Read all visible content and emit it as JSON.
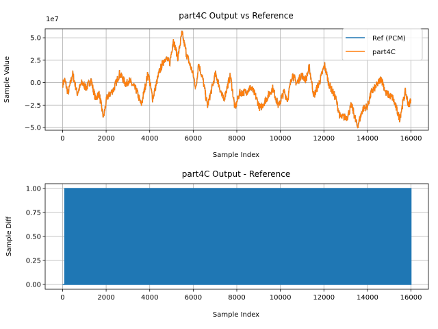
{
  "chart_data": [
    {
      "type": "line",
      "title": "part4C Output vs Reference",
      "xlabel": "Sample Index",
      "ylabel": "Sample Value",
      "y_offset_label": "1e7",
      "xlim": [
        -800,
        16800
      ],
      "ylim": [
        -5.3,
        6.0
      ],
      "xticks": [
        0,
        2000,
        4000,
        6000,
        8000,
        10000,
        12000,
        14000,
        16000
      ],
      "yticks": [
        -5.0,
        -2.5,
        0.0,
        2.5,
        5.0
      ],
      "ytick_labels": [
        "−5.0",
        "−2.5",
        "0.0",
        "2.5",
        "5.0"
      ],
      "grid": true,
      "legend_placement": "top-right",
      "series": [
        {
          "name": "Ref (PCM)",
          "color": "#1f77b4"
        },
        {
          "name": "part4C",
          "color": "#ff7f0e"
        }
      ],
      "y_units": "1e7",
      "approx_envelope": {
        "x": [
          10,
          94,
          252,
          462,
          672,
          882,
          1092,
          1302,
          1512,
          1669,
          1879,
          2037,
          2352,
          2614,
          2929,
          3034,
          3402,
          3612,
          3927,
          4137,
          4452,
          4715,
          4925,
          5082,
          5292,
          5481,
          5712,
          5975,
          6132,
          6237,
          6447,
          6657,
          7024,
          7392,
          7707,
          7917,
          8127,
          8442,
          8653,
          8863,
          9072,
          9387,
          9650,
          9913,
          10175,
          10332,
          10543,
          10753,
          10962,
          11172,
          11330,
          11540,
          11802,
          12033,
          12222,
          12537,
          12748,
          13063,
          13273,
          13536,
          13797,
          14008,
          14166,
          14427,
          14638,
          14848,
          15163,
          15478,
          15741,
          15898,
          16000
        ],
        "y": [
          -0.1,
          0.3,
          -1.2,
          1.0,
          -1.2,
          0.0,
          -0.6,
          0.3,
          -1.8,
          -1.2,
          -3.85,
          -1.7,
          -0.7,
          1.0,
          -0.2,
          0.3,
          -0.9,
          -2.5,
          1.1,
          -1.8,
          1.3,
          2.8,
          2.2,
          4.75,
          2.8,
          5.5,
          3.0,
          1.1,
          -0.7,
          2.2,
          0.3,
          -2.6,
          1.0,
          -2.0,
          0.8,
          -2.9,
          -1.16,
          -1.0,
          -0.5,
          -1.5,
          -2.9,
          -1.7,
          -0.6,
          -2.6,
          -1.0,
          -1.9,
          0.94,
          -0.1,
          0.85,
          0.35,
          1.7,
          -1.5,
          0.1,
          1.94,
          -0.1,
          -1.7,
          -3.85,
          -3.85,
          -2.5,
          -4.9,
          -2.9,
          -2.6,
          -1.16,
          -0.3,
          0.5,
          -1.16,
          -1.7,
          -4.0,
          -1.0,
          -2.6,
          -1.7
        ]
      }
    },
    {
      "type": "area",
      "title": "part4C Output - Reference",
      "xlabel": "Sample Index",
      "ylabel": "Sample Diff",
      "xlim": [
        -800,
        16800
      ],
      "ylim": [
        -0.05,
        1.05
      ],
      "xticks": [
        0,
        2000,
        4000,
        6000,
        8000,
        10000,
        12000,
        14000,
        16000
      ],
      "yticks": [
        0.0,
        0.25,
        0.5,
        0.75,
        1.0
      ],
      "ytick_labels": [
        "0.00",
        "0.25",
        "0.50",
        "0.75",
        "1.00"
      ],
      "grid": true,
      "series": [
        {
          "color": "#1f77b4",
          "zero_until": 100,
          "oscillates_between": [
            0,
            1
          ],
          "x_end": 16000
        }
      ]
    }
  ]
}
